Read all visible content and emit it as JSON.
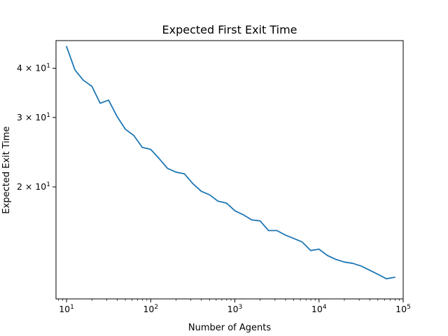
{
  "chart_data": {
    "type": "line",
    "title": "Expected First Exit Time",
    "xlabel": "Number of Agents",
    "ylabel": "Expected Exit Time",
    "x_scale": "log",
    "y_scale": "log",
    "xlim": [
      7.5,
      100000
    ],
    "ylim": [
      10.4,
      47.0
    ],
    "grid": false,
    "line_color": "#1f77b4",
    "x_ticks": [
      {
        "value": 10,
        "base": "10",
        "exp": "1"
      },
      {
        "value": 100,
        "base": "10",
        "exp": "2"
      },
      {
        "value": 1000,
        "base": "10",
        "exp": "3"
      },
      {
        "value": 10000,
        "base": "10",
        "exp": "4"
      },
      {
        "value": 100000,
        "base": "10",
        "exp": "5"
      }
    ],
    "y_ticks": [
      {
        "value": 20,
        "mant": "2 × 10",
        "exp": "1"
      },
      {
        "value": 30,
        "mant": "3 × 10",
        "exp": "1"
      },
      {
        "value": 40,
        "mant": "4 × 10",
        "exp": "1"
      }
    ],
    "series": [
      {
        "x": [
          10,
          12.6,
          15.8,
          20,
          25.1,
          31.6,
          39.8,
          50.1,
          63.1,
          79.4,
          100,
          126,
          158,
          200,
          251,
          316,
          398,
          501,
          631,
          794,
          1000,
          1259,
          1585,
          1995,
          2512,
          3162,
          3981,
          5012,
          6310,
          7943,
          10000,
          12589,
          15849,
          19953,
          25119,
          31623,
          39811,
          50119,
          63096,
          79433
        ],
        "y": [
          45.4,
          39.6,
          37.3,
          36.0,
          32.6,
          33.2,
          30.2,
          28.0,
          27.0,
          25.2,
          24.9,
          23.6,
          22.3,
          21.8,
          21.6,
          20.4,
          19.5,
          19.1,
          18.4,
          18.2,
          17.4,
          17.0,
          16.5,
          16.4,
          15.5,
          15.5,
          15.1,
          14.8,
          14.5,
          13.8,
          13.9,
          13.4,
          13.1,
          12.9,
          12.8,
          12.6,
          12.3,
          12.0,
          11.7,
          11.8
        ]
      }
    ]
  }
}
